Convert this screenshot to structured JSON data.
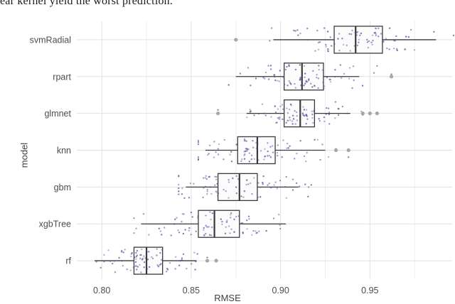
{
  "caption": {
    "text": "ear kernel yield the worst prediction."
  },
  "chart_data": {
    "type": "boxplot",
    "title": "",
    "xlabel": "RMSE",
    "ylabel": "model",
    "xlim": [
      0.786,
      0.996
    ],
    "x_major_ticks": [
      0.8,
      0.85,
      0.9,
      0.95
    ],
    "x_tick_labels": [
      "0.80",
      "0.85",
      "0.90",
      "0.95"
    ],
    "x_minor_step": 0.025,
    "grid": "major and minor vertical, major horizontal per category",
    "legend": "none",
    "categories": [
      "svmRadial",
      "rpart",
      "glmnet",
      "knn",
      "gbm",
      "xgbTree",
      "rf"
    ],
    "series": [
      {
        "name": "svmRadial",
        "min": 0.896,
        "q1": 0.93,
        "median": 0.942,
        "q3": 0.957,
        "max": 0.987,
        "outliers": [
          0.875
        ],
        "n_points": 80
      },
      {
        "name": "rpart",
        "min": 0.875,
        "q1": 0.902,
        "median": 0.912,
        "q3": 0.924,
        "max": 0.944,
        "outliers": [
          0.962
        ],
        "n_points": 80
      },
      {
        "name": "glmnet",
        "min": 0.881,
        "q1": 0.902,
        "median": 0.911,
        "q3": 0.919,
        "max": 0.939,
        "outliers": [
          0.865,
          0.946,
          0.95,
          0.954
        ],
        "n_points": 80
      },
      {
        "name": "knn",
        "min": 0.858,
        "q1": 0.876,
        "median": 0.887,
        "q3": 0.897,
        "max": 0.925,
        "outliers": [
          0.931,
          0.938
        ],
        "n_points": 80
      },
      {
        "name": "gbm",
        "min": 0.847,
        "q1": 0.865,
        "median": 0.877,
        "q3": 0.887,
        "max": 0.91,
        "outliers": [],
        "n_points": 80
      },
      {
        "name": "xgbTree",
        "min": 0.822,
        "q1": 0.854,
        "median": 0.863,
        "q3": 0.877,
        "max": 0.903,
        "outliers": [],
        "n_points": 80
      },
      {
        "name": "rf",
        "min": 0.796,
        "q1": 0.818,
        "median": 0.825,
        "q3": 0.834,
        "max": 0.853,
        "outliers": [
          0.859,
          0.864
        ],
        "n_points": 80
      }
    ]
  },
  "colors": {
    "background": "#ffffff",
    "grid_major": "#e1e1e1",
    "grid_minor": "#efefef",
    "box_stroke": "#3a3a3a",
    "box_fill": "#fbfbfb",
    "jitter_point": "#5050a0",
    "outlier_point": "#a3a3a3",
    "axis_text": "#4d4d4d",
    "axis_title": "#3f3f3f"
  }
}
